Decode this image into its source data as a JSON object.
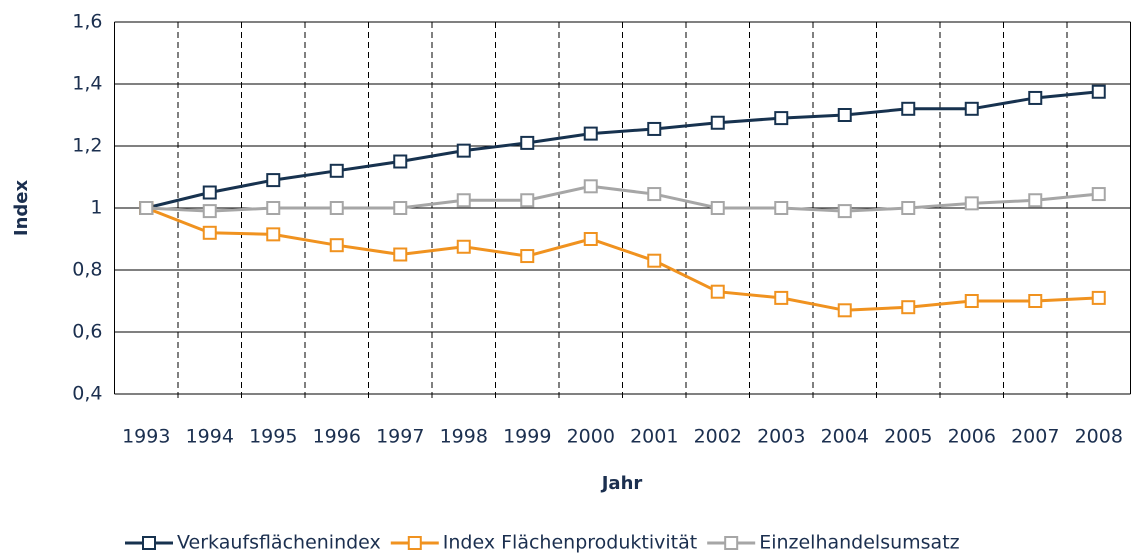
{
  "chart_data": {
    "type": "line",
    "x_label": "Jahr",
    "y_label": "Index",
    "categories": [
      "1993",
      "1994",
      "1995",
      "1996",
      "1997",
      "1998",
      "1999",
      "2000",
      "2001",
      "2002",
      "2003",
      "2004",
      "2005",
      "2006",
      "2007",
      "2008"
    ],
    "series": [
      {
        "name": "Verkaufsflächenindex",
        "color": "#17324f",
        "values": [
          1,
          1.05,
          1.09,
          1.12,
          1.15,
          1.185,
          1.21,
          1.24,
          1.255,
          1.275,
          1.29,
          1.3,
          1.32,
          1.32,
          1.355,
          1.375
        ]
      },
      {
        "name": "Index Flächenproduktivität",
        "color": "#f0921f",
        "values": [
          1,
          0.92,
          0.915,
          0.88,
          0.85,
          0.875,
          0.845,
          0.9,
          0.83,
          0.73,
          0.71,
          0.67,
          0.68,
          0.7,
          0.7,
          0.71
        ]
      },
      {
        "name": "Einzelhandelsumsatz",
        "color": "#a6a6a6",
        "values": [
          1,
          0.99,
          1,
          1,
          1,
          1.025,
          1.025,
          1.07,
          1.045,
          1,
          1,
          0.99,
          1,
          1.015,
          1.025,
          1.045
        ]
      }
    ],
    "ylim": [
      0.4,
      1.6
    ],
    "yticks": [
      {
        "value": 0.4,
        "label": "0,4"
      },
      {
        "value": 0.6,
        "label": "0,6"
      },
      {
        "value": 0.8,
        "label": "0,8"
      },
      1,
      {
        "value": 1.2,
        "label": "1,2"
      },
      {
        "value": 1.4,
        "label": "1,4"
      },
      {
        "value": 1.6,
        "label": "1,6"
      }
    ],
    "grid": true,
    "legend": "bottom"
  }
}
